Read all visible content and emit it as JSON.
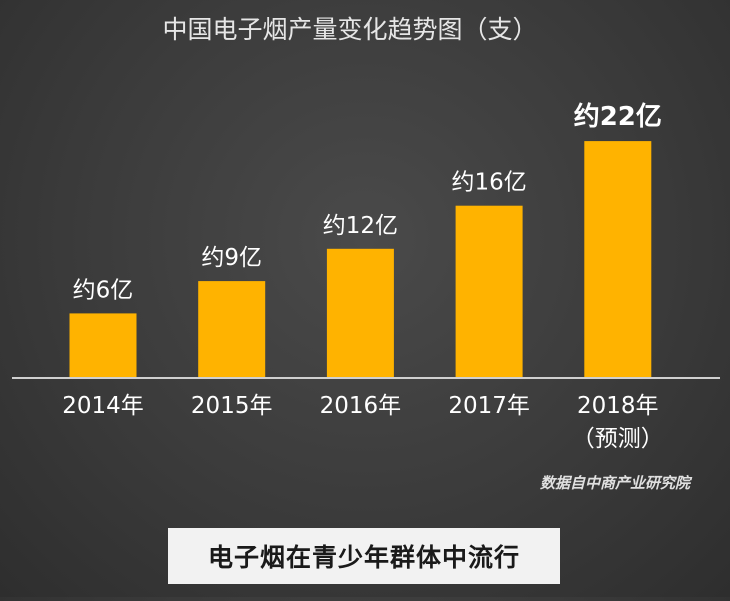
{
  "chart_data": {
    "type": "bar",
    "title": "中国电子烟产量变化趋势图（支）",
    "categories": [
      "2014年",
      "2015年",
      "2016年",
      "2017年",
      "2018年"
    ],
    "category_notes": [
      "",
      "",
      "",
      "",
      "（预测）"
    ],
    "values": [
      6,
      9,
      12,
      16,
      22
    ],
    "value_unit": "亿",
    "data_labels": [
      "约6亿",
      "约9亿",
      "约12亿",
      "约16亿",
      "约22亿"
    ],
    "highlight_index": 4,
    "source": "数据自中商产业研究院",
    "grid": false,
    "legend": "none",
    "bar_color": "#ffb300",
    "label_color": "#ffffff",
    "axis_color": "#d0d0d0"
  },
  "caption": "电子烟在青少年群体中流行"
}
